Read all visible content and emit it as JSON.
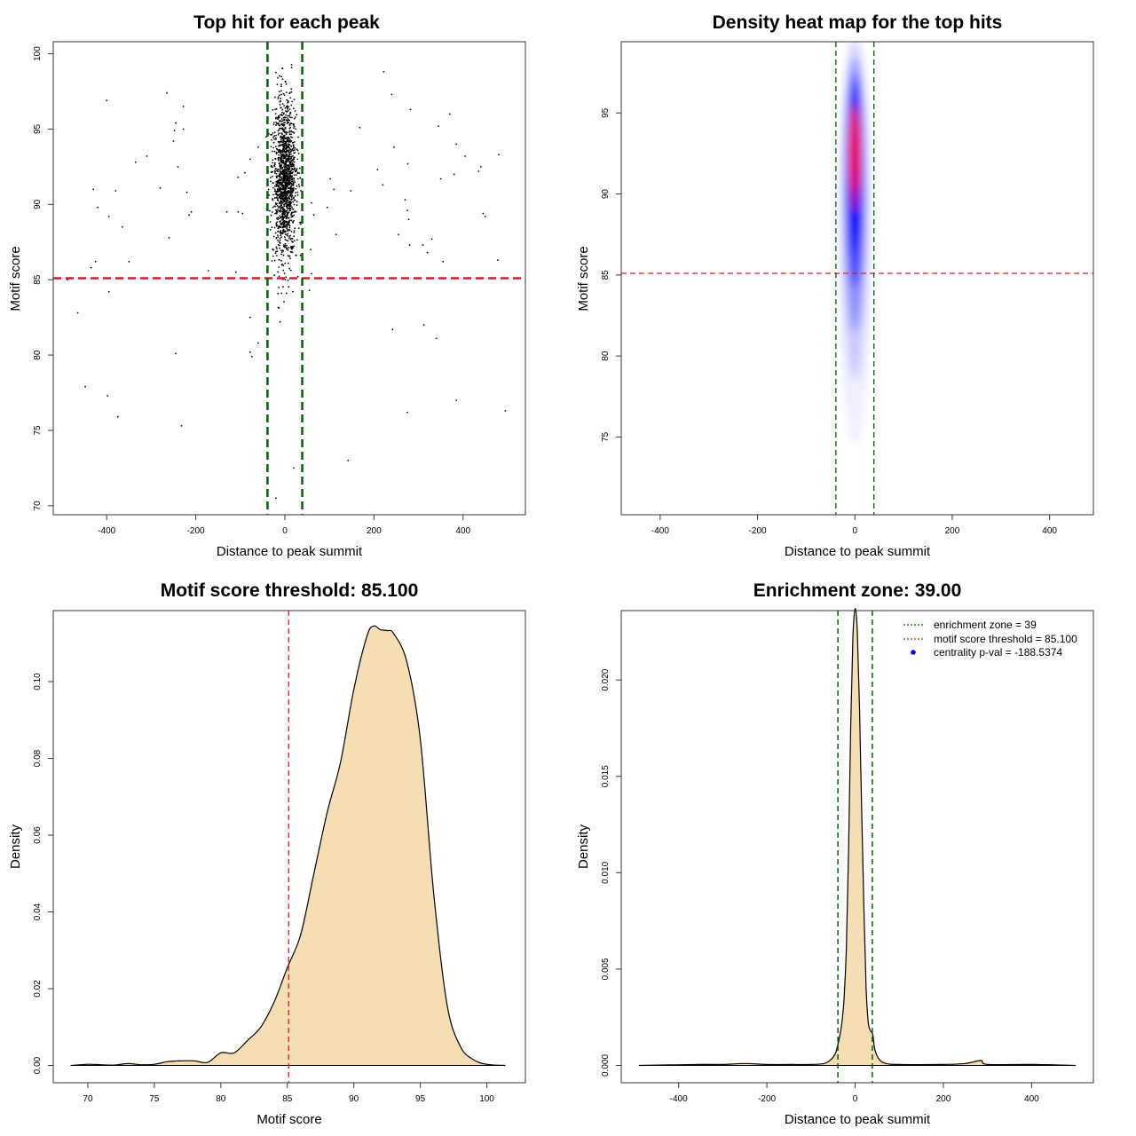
{
  "chart_data": [
    {
      "id": "scatter",
      "type": "scatter",
      "title": "Top hit for each peak",
      "xlabel": "Distance to peak summit",
      "ylabel": "Motif score",
      "xlim": [
        -520,
        540
      ],
      "ylim": [
        69.4,
        100.8
      ],
      "xticks": [
        "-400",
        "-200",
        "0",
        "200",
        "400"
      ],
      "xtick_values": [
        -400,
        -200,
        0,
        200,
        400
      ],
      "yticks": [
        "70",
        "75",
        "80",
        "85",
        "90",
        "95",
        "100"
      ],
      "ytick_values": [
        70,
        75,
        80,
        85,
        90,
        95,
        100
      ],
      "hlines": [
        {
          "y": 85.1,
          "color": "#e31a1c",
          "style": "dashed"
        }
      ],
      "vlines": [
        {
          "x": -39,
          "color": "#006400",
          "style": "dashed"
        },
        {
          "x": 39,
          "color": "#006400",
          "style": "dashed"
        }
      ],
      "point_color": "#000000",
      "cluster": {
        "x_center": 0,
        "x_sd": 13,
        "x_range": [
          -42,
          42
        ],
        "y_mean": 91.6,
        "y_sd": 2.5,
        "y_range": [
          82,
          99.3
        ],
        "n": 1500
      },
      "outliers": [
        [
          -400,
          96.9
        ],
        [
          -265,
          97.4
        ],
        [
          -228,
          96.5
        ],
        [
          -248,
          94.9
        ],
        [
          -245,
          95.4
        ],
        [
          -228,
          95.0
        ],
        [
          -250,
          94.2
        ],
        [
          -335,
          92.8
        ],
        [
          -310,
          93.2
        ],
        [
          -240,
          92.5
        ],
        [
          -430,
          91.0
        ],
        [
          -380,
          90.9
        ],
        [
          -280,
          91.1
        ],
        [
          -220,
          90.8
        ],
        [
          -420,
          89.8
        ],
        [
          -395,
          89.2
        ],
        [
          -365,
          88.5
        ],
        [
          -215,
          89.3
        ],
        [
          -210,
          89.5
        ],
        [
          -130,
          89.5
        ],
        [
          -105,
          89.5
        ],
        [
          -95,
          89.4
        ],
        [
          -260,
          87.8
        ],
        [
          -425,
          86.2
        ],
        [
          -435,
          85.8
        ],
        [
          -350,
          86.2
        ],
        [
          -172,
          85.6
        ],
        [
          -110,
          85.5
        ],
        [
          -488,
          85.0
        ],
        [
          -395,
          84.2
        ],
        [
          -465,
          82.8
        ],
        [
          -78,
          82.5
        ],
        [
          -60,
          80.8
        ],
        [
          -78,
          80.2
        ],
        [
          -74,
          79.9
        ],
        [
          -245,
          80.1
        ],
        [
          -448,
          77.9
        ],
        [
          -398,
          77.3
        ],
        [
          -375,
          75.9
        ],
        [
          -232,
          75.3
        ],
        [
          -105,
          91.8
        ],
        [
          -90,
          92.1
        ],
        [
          -78,
          93.0
        ],
        [
          -60,
          93.8
        ],
        [
          222,
          98.8
        ],
        [
          240,
          97.3
        ],
        [
          282,
          96.3
        ],
        [
          370,
          96.0
        ],
        [
          345,
          95.2
        ],
        [
          168,
          95.1
        ],
        [
          245,
          93.8
        ],
        [
          385,
          94.0
        ],
        [
          405,
          93.2
        ],
        [
          480,
          93.3
        ],
        [
          276,
          92.7
        ],
        [
          440,
          92.5
        ],
        [
          435,
          92.2
        ],
        [
          380,
          92.0
        ],
        [
          350,
          91.7
        ],
        [
          220,
          91.3
        ],
        [
          208,
          92.3
        ],
        [
          148,
          90.9
        ],
        [
          270,
          90.3
        ],
        [
          275,
          89.6
        ],
        [
          445,
          89.4
        ],
        [
          450,
          89.2
        ],
        [
          278,
          89.0
        ],
        [
          115,
          88.0
        ],
        [
          255,
          88.0
        ],
        [
          330,
          87.7
        ],
        [
          310,
          87.3
        ],
        [
          280,
          87.3
        ],
        [
          320,
          86.8
        ],
        [
          478,
          86.3
        ],
        [
          355,
          86.2
        ],
        [
          242,
          81.7
        ],
        [
          312,
          82.0
        ],
        [
          340,
          81.1
        ],
        [
          385,
          77.0
        ],
        [
          275,
          76.2
        ],
        [
          495,
          76.3
        ],
        [
          142,
          73.0
        ],
        [
          20,
          72.5
        ],
        [
          -20,
          70.5
        ],
        [
          60,
          90.1
        ],
        [
          65,
          89.3
        ],
        [
          95,
          89.8
        ],
        [
          102,
          91.7
        ],
        [
          110,
          91.0
        ],
        [
          58,
          87.0
        ],
        [
          60,
          85.4
        ],
        [
          55,
          84.3
        ]
      ]
    },
    {
      "id": "heatmap",
      "type": "heatmap",
      "title": "Density heat map for the top hits",
      "xlabel": "Distance to peak summit",
      "ylabel": "Motif score",
      "xlim": [
        -480,
        490
      ],
      "ylim": [
        70.2,
        99.4
      ],
      "xticks": [
        "-400",
        "-200",
        "0",
        "200",
        "400"
      ],
      "xtick_values": [
        -400,
        -200,
        0,
        200,
        400
      ],
      "yticks": [
        "75",
        "80",
        "85",
        "90",
        "95"
      ],
      "ytick_values": [
        75,
        80,
        85,
        90,
        95
      ],
      "hlines": [
        {
          "y": 85.1,
          "color": "#e31a1c",
          "style": "dashed"
        }
      ],
      "vlines": [
        {
          "x": -39,
          "color": "#006400",
          "style": "dashed"
        },
        {
          "x": 39,
          "color": "#006400",
          "style": "dashed"
        }
      ],
      "density_peak": {
        "x": 0,
        "y": 92.8
      },
      "color_scale": [
        "#ffffff",
        "#0000ff",
        "#ff0000"
      ]
    },
    {
      "id": "score-density",
      "type": "area",
      "title": "Motif score threshold: 85.100",
      "xlabel": "Motif score",
      "ylabel": "Density",
      "xlim": [
        67.4,
        102.9
      ],
      "ylim": [
        -0.0045,
        0.1185
      ],
      "xticks": [
        "70",
        "75",
        "80",
        "85",
        "90",
        "95",
        "100"
      ],
      "xtick_values": [
        70,
        75,
        80,
        85,
        90,
        95,
        100
      ],
      "yticks": [
        "0.00",
        "0.02",
        "0.04",
        "0.06",
        "0.08",
        "0.10"
      ],
      "ytick_values": [
        0,
        0.02,
        0.04,
        0.06,
        0.08,
        0.1
      ],
      "fill": "#f5deb3",
      "vlines": [
        {
          "x": 85.1,
          "color": "#e31a1c",
          "style": "dashed"
        }
      ],
      "x": [
        68.7,
        70,
        71,
        72,
        73,
        74,
        75,
        76,
        77,
        78,
        79,
        80,
        81,
        82,
        83,
        84,
        85,
        86,
        87,
        88,
        89,
        90,
        91,
        91.5,
        92,
        92.5,
        93,
        94,
        95,
        96,
        97,
        98,
        99,
        100,
        101.4
      ],
      "values": [
        0,
        0.0003,
        0.0002,
        0.0001,
        0.0005,
        0.0002,
        0.0003,
        0.001,
        0.0012,
        0.0012,
        0.0008,
        0.0033,
        0.0033,
        0.0065,
        0.01,
        0.0165,
        0.0255,
        0.034,
        0.05,
        0.066,
        0.079,
        0.098,
        0.112,
        0.1145,
        0.1135,
        0.1133,
        0.1125,
        0.105,
        0.085,
        0.045,
        0.016,
        0.005,
        0.0015,
        0.0003,
        0
      ]
    },
    {
      "id": "distance-density",
      "type": "area",
      "title": "Enrichment zone: 39.00",
      "xlabel": "Distance to peak summit",
      "ylabel": "Density",
      "xlim": [
        -530,
        540
      ],
      "ylim": [
        -0.0009,
        0.0236
      ],
      "xticks": [
        "-400",
        "-200",
        "0",
        "200",
        "400"
      ],
      "xtick_values": [
        -400,
        -200,
        0,
        200,
        400
      ],
      "yticks": [
        "0.000",
        "0.005",
        "0.010",
        "0.015",
        "0.020"
      ],
      "ytick_values": [
        0,
        0.005,
        0.01,
        0.015,
        0.02
      ],
      "fill": "#f5deb3",
      "vlines": [
        {
          "x": -39,
          "color": "#006400",
          "style": "dashed"
        },
        {
          "x": 39,
          "color": "#006400",
          "style": "dashed"
        }
      ],
      "x": [
        -490,
        -350,
        -300,
        -250,
        -200,
        -150,
        -100,
        -70,
        -55,
        -45,
        -40,
        -35,
        -30,
        -25,
        -20,
        -15,
        -10,
        -5,
        0,
        5,
        10,
        15,
        20,
        25,
        30,
        35,
        40,
        45,
        55,
        70,
        100,
        200,
        250,
        285,
        300,
        400,
        500
      ],
      "values": [
        0,
        5e-05,
        5e-05,
        0.0001,
        5e-05,
        5e-05,
        5e-05,
        0.0001,
        0.0003,
        0.0006,
        0.001,
        0.0015,
        0.0022,
        0.0035,
        0.006,
        0.011,
        0.0175,
        0.0222,
        0.0237,
        0.0225,
        0.0185,
        0.013,
        0.008,
        0.004,
        0.0022,
        0.0018,
        0.0016,
        0.0008,
        0.0003,
        0.0001,
        5e-05,
        5e-05,
        0.0001,
        0.00025,
        5e-05,
        5e-05,
        0
      ],
      "legend": {
        "placement": "top-right",
        "entries": [
          {
            "label": "enrichment zone = 39",
            "color": "#006400",
            "style": "dotted-line"
          },
          {
            "label": "motif score threshold = 85.100",
            "color": "#e31a1c",
            "style": "dotted-line"
          },
          {
            "label": "centrality p-val = -188.5374",
            "color": "#0000ff",
            "style": "point"
          }
        ]
      }
    }
  ]
}
